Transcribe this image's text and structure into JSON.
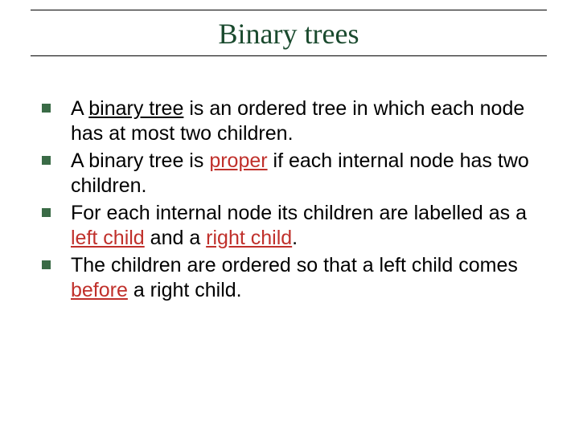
{
  "slide": {
    "title": "Binary trees",
    "title_color": "#1a4a2e",
    "title_font": "Times New Roman",
    "title_fontsize": 36,
    "rule_color": "#000000",
    "bullet_marker_color": "#3a6b46",
    "body_fontsize": 25,
    "body_color": "#000000",
    "highlight_color": "#c0302b",
    "background": "#ffffff",
    "bullets": [
      {
        "runs": [
          {
            "text": "A "
          },
          {
            "text": "binary tree",
            "underline": true
          },
          {
            "text": " is an ordered tree in which each node has at most two children."
          }
        ]
      },
      {
        "runs": [
          {
            "text": "A binary tree is "
          },
          {
            "text": "proper",
            "underline": true,
            "color": "highlight"
          },
          {
            "text": " if each internal node has two children."
          }
        ]
      },
      {
        "runs": [
          {
            "text": "For each internal node its children are labelled as a "
          },
          {
            "text": "left child",
            "underline": true,
            "color": "highlight"
          },
          {
            "text": " and a "
          },
          {
            "text": "right child",
            "underline": true,
            "color": "highlight"
          },
          {
            "text": "."
          }
        ]
      },
      {
        "runs": [
          {
            "text": "The children are ordered so that a left child comes "
          },
          {
            "text": "before",
            "underline": true,
            "color": "highlight"
          },
          {
            "text": " a right child."
          }
        ]
      }
    ]
  }
}
